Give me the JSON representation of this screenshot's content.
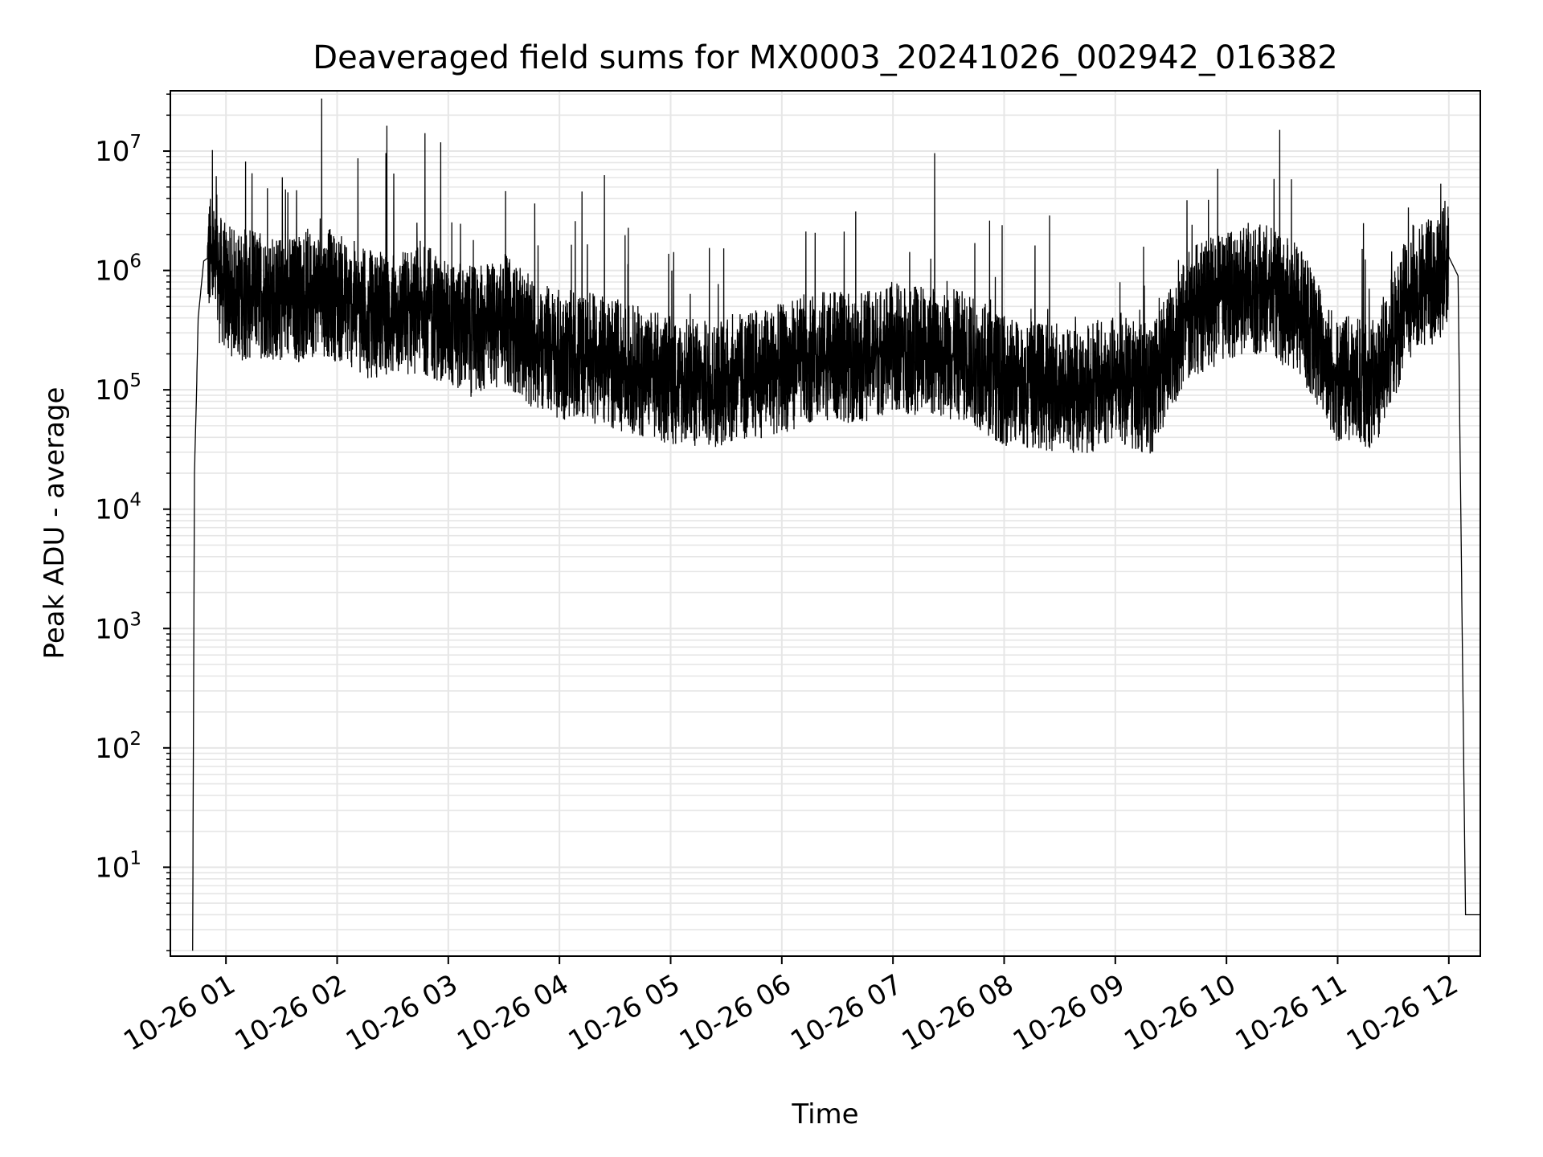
{
  "chart_data": {
    "type": "line",
    "title": "Deaveraged field sums for MX0003_20241026_002942_016382",
    "xlabel": "Time",
    "ylabel": "Peak ADU - average",
    "yscale": "log",
    "grid": true,
    "line_color": "#000000",
    "grid_color": "#e6e6e6",
    "xlim": [
      "2024-10-26 00:30",
      "2024-10-26 12:17"
    ],
    "ylim": [
      1.8,
      32000000
    ],
    "x_tick_labels": [
      "10-26 01",
      "10-26 02",
      "10-26 03",
      "10-26 04",
      "10-26 05",
      "10-26 06",
      "10-26 07",
      "10-26 08",
      "10-26 09",
      "10-26 10",
      "10-26 11",
      "10-26 12"
    ],
    "y_tick_labels": [
      {
        "base": "10",
        "exp": "1"
      },
      {
        "base": "10",
        "exp": "2"
      },
      {
        "base": "10",
        "exp": "3"
      },
      {
        "base": "10",
        "exp": "4"
      },
      {
        "base": "10",
        "exp": "5"
      },
      {
        "base": "10",
        "exp": "6"
      },
      {
        "base": "10",
        "exp": "7"
      }
    ],
    "series": [
      {
        "x": [
          "2024-10-26 00:42",
          "2024-10-26 00:43",
          "2024-10-26 00:44",
          "2024-10-26 00:45",
          "2024-10-26 00:48",
          "2024-10-26 00:51",
          "2024-10-26 00:55",
          "2024-10-26 00:58",
          "2024-10-26 01:00",
          "2024-10-26 01:10",
          "2024-10-26 01:20",
          "2024-10-26 01:30",
          "2024-10-26 01:40",
          "2024-10-26 01:50",
          "2024-10-26 02:00",
          "2024-10-26 02:15",
          "2024-10-26 02:30",
          "2024-10-26 02:45",
          "2024-10-26 03:00",
          "2024-10-26 03:15",
          "2024-10-26 03:30",
          "2024-10-26 03:45",
          "2024-10-26 04:00",
          "2024-10-26 04:20",
          "2024-10-26 04:40",
          "2024-10-26 05:00",
          "2024-10-26 05:20",
          "2024-10-26 05:40",
          "2024-10-26 06:00",
          "2024-10-26 06:20",
          "2024-10-26 06:40",
          "2024-10-26 07:00",
          "2024-10-26 07:20",
          "2024-10-26 07:40",
          "2024-10-26 08:00",
          "2024-10-26 08:20",
          "2024-10-26 08:40",
          "2024-10-26 09:00",
          "2024-10-26 09:20",
          "2024-10-26 09:40",
          "2024-10-26 10:00",
          "2024-10-26 10:20",
          "2024-10-26 10:40",
          "2024-10-26 11:00",
          "2024-10-26 11:20",
          "2024-10-26 11:40",
          "2024-10-26 11:55",
          "2024-10-26 12:00",
          "2024-10-26 12:05",
          "2024-10-26 12:09",
          "2024-10-26 12:17"
        ],
        "y": [
          2,
          20000,
          80000,
          400000,
          1200000,
          1300000,
          900000,
          800000,
          700000,
          600000,
          650000,
          550000,
          600000,
          700000,
          600000,
          450000,
          400000,
          500000,
          350000,
          300000,
          400000,
          250000,
          200000,
          180000,
          150000,
          120000,
          110000,
          130000,
          150000,
          200000,
          180000,
          230000,
          210000,
          190000,
          120000,
          110000,
          100000,
          120000,
          100000,
          450000,
          600000,
          700000,
          450000,
          120000,
          110000,
          700000,
          900000,
          1300000,
          900000,
          4,
          4
        ]
      }
    ]
  }
}
